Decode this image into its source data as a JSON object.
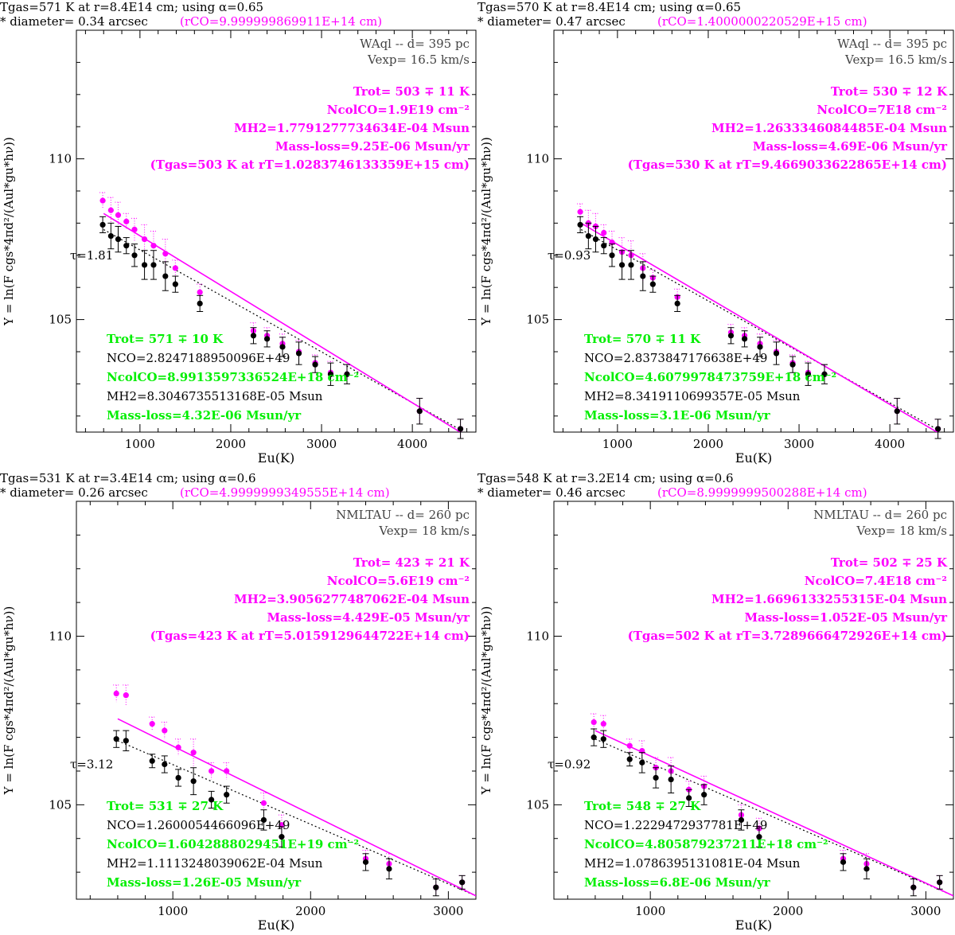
{
  "colors": {
    "magenta": "#ff00ff",
    "green": "#00ee00",
    "black": "#000000",
    "gray": "#444444"
  },
  "ylabel_text": "Y = ln(F cgs*4πd²/(Aul*gu*hν))",
  "chart_data": [
    {
      "type": "scatter",
      "star": "WAql -- d= 395 pc",
      "vexp": "Vexp= 16.5 km/s",
      "header_line1": "Tgas=571 K at r=8.4E14 cm; using α=0.65",
      "header_line2a": "* diameter= 0.34 arcsec",
      "header_line2b": "(rCO=9.999999869911E+14 cm)",
      "xlabel": "Eu(K)",
      "ylabel": "Y = ln(F cgs*4πd²/(Aul*gu*hν))",
      "xlim": [
        300,
        4700
      ],
      "ylim": [
        101.5,
        114
      ],
      "xticks": [
        1000,
        2000,
        3000,
        4000
      ],
      "yticks": [
        105,
        110
      ],
      "tau": "τ=1.81",
      "tau_y": 107.0,
      "fit_magenta": {
        "x": [
          600,
          4700
        ],
        "y": [
          108.3,
          101.2
        ]
      },
      "fit_dotted": {
        "x": [
          600,
          4700
        ],
        "y": [
          107.8,
          101.3
        ]
      },
      "series": [
        {
          "name": "corrected",
          "color": "#ff00ff",
          "x": [
            590,
            680,
            760,
            850,
            940,
            1050,
            1150,
            1280,
            1390,
            1660,
            2250,
            2400,
            2570,
            2750,
            2930,
            3100,
            3280,
            4080,
            4530
          ],
          "y": [
            108.7,
            108.4,
            108.25,
            108.05,
            107.8,
            107.5,
            107.3,
            107.05,
            106.6,
            105.85,
            104.65,
            104.5,
            104.25,
            104.0,
            103.65,
            103.35,
            103.3,
            102.15,
            101.6
          ]
        },
        {
          "name": "observed",
          "color": "#000000",
          "x": [
            590,
            680,
            760,
            850,
            940,
            1050,
            1150,
            1280,
            1390,
            1660,
            2250,
            2400,
            2570,
            2750,
            2930,
            3100,
            3280,
            4080,
            4530
          ],
          "y": [
            107.95,
            107.6,
            107.5,
            107.3,
            107.0,
            106.7,
            106.7,
            106.35,
            106.1,
            105.5,
            104.5,
            104.4,
            104.15,
            103.95,
            103.6,
            103.3,
            103.3,
            102.15,
            101.6
          ],
          "err": [
            0.25,
            0.4,
            0.4,
            0.25,
            0.35,
            0.45,
            0.45,
            0.45,
            0.25,
            0.25,
            0.25,
            0.25,
            0.3,
            0.35,
            0.25,
            0.35,
            0.3,
            0.4,
            0.3
          ]
        }
      ],
      "annot_magenta": [
        {
          "label": "Trot= 503 ∓ 11 K"
        },
        {
          "label": "NcolCO=1.9E19 cm⁻²"
        },
        {
          "label": "MH2=1.7791277734634E-04 Msun"
        },
        {
          "label": "Mass-loss=9.25E-06 Msun/yr"
        },
        {
          "label": "(Tgas=503 K at rT=1.0283746133359E+15 cm)"
        }
      ],
      "annot_lower": [
        {
          "label": "Trot= 571 ∓ 10 K",
          "color": "#00ee00"
        },
        {
          "label": "NCO=2.8247188950096E+49",
          "color": "#000000"
        },
        {
          "label": "NcolCO=8.9913597336524E+18 cm⁻²",
          "color": "#00ee00"
        },
        {
          "label": "MH2=8.3046735513168E-05 Msun",
          "color": "#000000"
        },
        {
          "label": "Mass-loss=4.32E-06 Msun/yr",
          "color": "#00ee00"
        }
      ]
    },
    {
      "type": "scatter",
      "star": "WAql -- d= 395 pc",
      "vexp": "Vexp= 16.5 km/s",
      "header_line1": "Tgas=570 K at r=8.4E14 cm; using α=0.65",
      "header_line2a": "* diameter= 0.47 arcsec",
      "header_line2b": "(rCO=1.4000000220529E+15 cm)",
      "xlabel": "Eu(K)",
      "ylabel": "Y = ln(F cgs*4πd²/(Aul*gu*hν))",
      "xlim": [
        300,
        4700
      ],
      "ylim": [
        101.5,
        114
      ],
      "xticks": [
        1000,
        2000,
        3000,
        4000
      ],
      "yticks": [
        105,
        110
      ],
      "tau": "τ=0.93",
      "tau_y": 107.0,
      "fit_magenta": {
        "x": [
          600,
          4700
        ],
        "y": [
          108.0,
          101.2
        ]
      },
      "fit_dotted": {
        "x": [
          600,
          4700
        ],
        "y": [
          107.8,
          101.3
        ]
      },
      "series": [
        {
          "name": "corrected",
          "color": "#ff00ff",
          "x": [
            590,
            680,
            760,
            850,
            940,
            1050,
            1150,
            1280,
            1390,
            1660,
            2250,
            2400,
            2570,
            2750,
            2930,
            3100,
            3280,
            4080,
            4530
          ],
          "y": [
            108.35,
            108.0,
            107.9,
            107.7,
            107.4,
            107.1,
            107.0,
            106.6,
            106.3,
            105.7,
            104.6,
            104.5,
            104.25,
            104.0,
            103.65,
            103.35,
            103.3,
            102.15,
            101.6
          ]
        },
        {
          "name": "observed",
          "color": "#000000",
          "x": [
            590,
            680,
            760,
            850,
            940,
            1050,
            1150,
            1280,
            1390,
            1660,
            2250,
            2400,
            2570,
            2750,
            2930,
            3100,
            3280,
            4080,
            4530
          ],
          "y": [
            107.95,
            107.6,
            107.5,
            107.3,
            107.0,
            106.7,
            106.7,
            106.35,
            106.1,
            105.5,
            104.5,
            104.4,
            104.15,
            103.95,
            103.6,
            103.3,
            103.3,
            102.15,
            101.6
          ],
          "err": [
            0.25,
            0.4,
            0.4,
            0.25,
            0.35,
            0.45,
            0.45,
            0.45,
            0.25,
            0.25,
            0.25,
            0.25,
            0.3,
            0.35,
            0.25,
            0.35,
            0.3,
            0.4,
            0.3
          ]
        }
      ],
      "annot_magenta": [
        {
          "label": "Trot= 530 ∓ 12 K"
        },
        {
          "label": "NcolCO=7E18 cm⁻²"
        },
        {
          "label": "MH2=1.2633346084485E-04 Msun"
        },
        {
          "label": "Mass-loss=4.69E-06 Msun/yr"
        },
        {
          "label": "(Tgas=530 K at rT=9.4669033622865E+14 cm)"
        }
      ],
      "annot_lower": [
        {
          "label": "Trot= 570 ∓ 11 K",
          "color": "#00ee00"
        },
        {
          "label": "NCO=2.8373847176638E+49",
          "color": "#000000"
        },
        {
          "label": "NcolCO=4.6079978473759E+18 cm⁻²",
          "color": "#00ee00"
        },
        {
          "label": "MH2=8.3419110699357E-05 Msun",
          "color": "#000000"
        },
        {
          "label": "Mass-loss=3.1E-06 Msun/yr",
          "color": "#00ee00"
        }
      ]
    },
    {
      "type": "scatter",
      "star": "NMLTAU -- d= 260 pc",
      "vexp": "Vexp= 18 km/s",
      "header_line1": "Tgas=531 K at r=3.4E14 cm; using α=0.6",
      "header_line2a": "* diameter= 0.26 arcsec",
      "header_line2b": "(rCO=4.9999999349555E+14 cm)",
      "xlabel": "Eu(K)",
      "ylabel": "Y = ln(F cgs*4πd²/(Aul*gu*hν))",
      "xlim": [
        300,
        3200
      ],
      "ylim": [
        102.2,
        114
      ],
      "xticks": [
        1000,
        2000,
        3000
      ],
      "yticks": [
        105,
        110
      ],
      "tau": "τ=3.12",
      "tau_y": 106.2,
      "fit_magenta": {
        "x": [
          600,
          3200
        ],
        "y": [
          107.55,
          102.3
        ]
      },
      "fit_dotted": {
        "x": [
          600,
          3200
        ],
        "y": [
          106.9,
          102.3
        ]
      },
      "series": [
        {
          "name": "corrected",
          "color": "#ff00ff",
          "x": [
            590,
            660,
            850,
            940,
            1040,
            1150,
            1280,
            1390,
            1660,
            1790,
            2400,
            2570,
            2910,
            3100
          ],
          "y": [
            108.3,
            108.25,
            107.4,
            107.2,
            106.7,
            106.55,
            106.0,
            106.0,
            105.05,
            104.4,
            103.4,
            103.25,
            102.55,
            102.7
          ]
        },
        {
          "name": "observed",
          "color": "#000000",
          "x": [
            590,
            660,
            850,
            940,
            1040,
            1150,
            1280,
            1390,
            1660,
            1790,
            2400,
            2570,
            2910,
            3100
          ],
          "y": [
            106.95,
            106.9,
            106.3,
            106.2,
            105.8,
            105.7,
            105.15,
            105.3,
            104.55,
            104.05,
            103.3,
            103.1,
            102.55,
            102.7
          ],
          "err": [
            0.25,
            0.3,
            0.2,
            0.25,
            0.25,
            0.4,
            0.25,
            0.25,
            0.3,
            0.3,
            0.25,
            0.3,
            0.25,
            0.2
          ]
        }
      ],
      "annot_magenta": [
        {
          "label": "Trot= 423 ∓ 21 K"
        },
        {
          "label": "NcolCO=5.6E19 cm⁻²"
        },
        {
          "label": "MH2=3.9056277487062E-04 Msun"
        },
        {
          "label": "Mass-loss=4.429E-05 Msun/yr"
        },
        {
          "label": "(Tgas=423 K at rT=5.0159129644722E+14 cm)"
        }
      ],
      "annot_lower": [
        {
          "label": "Trot= 531 ∓ 27 K",
          "color": "#00ee00"
        },
        {
          "label": "NCO=1.2600054466096E+49",
          "color": "#000000"
        },
        {
          "label": "NcolCO=1.6042888029451E+19 cm⁻²",
          "color": "#00ee00"
        },
        {
          "label": "MH2=1.1113248039062E-04 Msun",
          "color": "#000000"
        },
        {
          "label": "Mass-loss=1.26E-05 Msun/yr",
          "color": "#00ee00"
        }
      ]
    },
    {
      "type": "scatter",
      "star": "NMLTAU -- d= 260 pc",
      "vexp": "Vexp= 18 km/s",
      "header_line1": "Tgas=548 K at r=3.2E14 cm; using α=0.6",
      "header_line2a": "* diameter= 0.46 arcsec",
      "header_line2b": "(rCO=8.9999999500288E+14 cm)",
      "xlabel": "Eu(K)",
      "ylabel": "Y = ln(F cgs*4πd²/(Aul*gu*hν))",
      "xlim": [
        300,
        3200
      ],
      "ylim": [
        102.2,
        114
      ],
      "xticks": [
        1000,
        2000,
        3000
      ],
      "yticks": [
        105,
        110
      ],
      "tau": "τ=0.92",
      "tau_y": 106.2,
      "fit_magenta": {
        "x": [
          600,
          3200
        ],
        "y": [
          107.2,
          102.3
        ]
      },
      "fit_dotted": {
        "x": [
          600,
          3200
        ],
        "y": [
          106.95,
          102.3
        ]
      },
      "series": [
        {
          "name": "corrected",
          "color": "#ff00ff",
          "x": [
            590,
            660,
            850,
            940,
            1040,
            1150,
            1280,
            1390,
            1660,
            1790,
            2400,
            2570,
            2910,
            3100
          ],
          "y": [
            107.45,
            107.4,
            106.75,
            106.6,
            106.1,
            106.0,
            105.45,
            105.55,
            104.7,
            104.3,
            103.4,
            103.25,
            102.55,
            102.7
          ]
        },
        {
          "name": "observed",
          "color": "#000000",
          "x": [
            590,
            660,
            850,
            940,
            1040,
            1150,
            1280,
            1390,
            1660,
            1790,
            2400,
            2570,
            2910,
            3100
          ],
          "y": [
            107.0,
            106.95,
            106.35,
            106.25,
            105.8,
            105.75,
            105.2,
            105.3,
            104.55,
            104.05,
            103.3,
            103.1,
            102.55,
            102.7
          ],
          "err": [
            0.25,
            0.25,
            0.2,
            0.3,
            0.3,
            0.4,
            0.25,
            0.3,
            0.3,
            0.3,
            0.25,
            0.3,
            0.25,
            0.2
          ]
        }
      ],
      "annot_magenta": [
        {
          "label": "Trot= 502 ∓ 25 K"
        },
        {
          "label": "NcolCO=7.4E18 cm⁻²"
        },
        {
          "label": "MH2=1.6696133255315E-04 Msun"
        },
        {
          "label": "Mass-loss=1.052E-05 Msun/yr"
        },
        {
          "label": "(Tgas=502 K at rT=3.7289666472926E+14 cm)"
        }
      ],
      "annot_lower": [
        {
          "label": "Trot= 548 ∓ 27 K",
          "color": "#00ee00"
        },
        {
          "label": "NCO=1.2229472937781E+49",
          "color": "#000000"
        },
        {
          "label": "NcolCO=4.805879237211E+18 cm⁻²",
          "color": "#00ee00"
        },
        {
          "label": "MH2=1.0786395131081E-04 Msun",
          "color": "#000000"
        },
        {
          "label": "Mass-loss=6.8E-06 Msun/yr",
          "color": "#00ee00"
        }
      ]
    }
  ]
}
